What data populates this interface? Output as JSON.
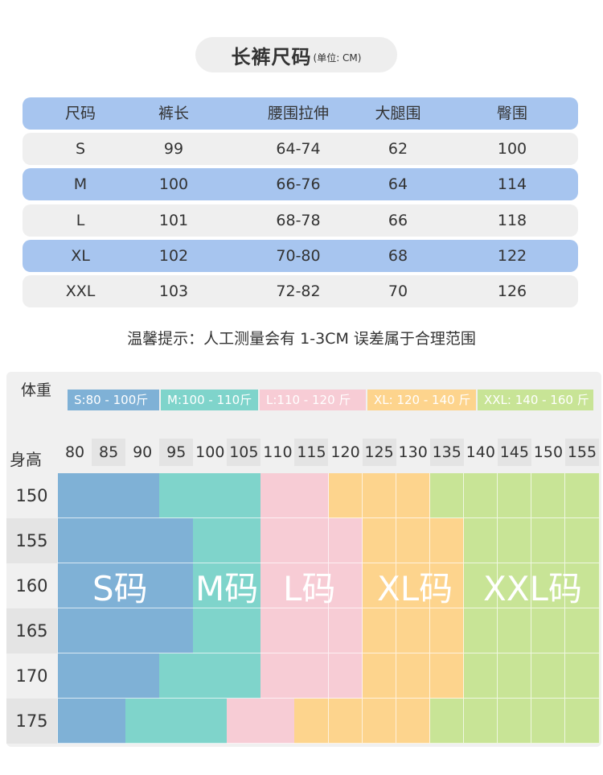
{
  "title": {
    "main": "长裤尺码",
    "unit": "(单位: CM)"
  },
  "table": {
    "headers": [
      "尺码",
      "裤长",
      "腰围拉伸",
      "大腿围",
      "臀围"
    ],
    "rows": [
      [
        "S",
        "99",
        "64-74",
        "62",
        "100"
      ],
      [
        "M",
        "100",
        "66-76",
        "64",
        "114"
      ],
      [
        "L",
        "101",
        "68-78",
        "66",
        "118"
      ],
      [
        "XL",
        "102",
        "70-80",
        "68",
        "122"
      ],
      [
        "XXL",
        "103",
        "72-82",
        "70",
        "126"
      ]
    ]
  },
  "tip": "温馨提示：人工测量会有 1-3CM 误差属于合理范围",
  "grid": {
    "weight_label": "体重",
    "height_label": "身高",
    "weight_bands": [
      {
        "label": "S:80 - 100斤",
        "color": "#7fb1d6"
      },
      {
        "label": "M:100 - 110斤",
        "color": "#7fd4cb"
      },
      {
        "label": "L:110 - 120 斤",
        "color": "#f7ccd5"
      },
      {
        "label": "XL: 120 - 140 斤",
        "color": "#fdd48d"
      },
      {
        "label": "XXL: 140 - 160 斤",
        "color": "#c8e496"
      }
    ],
    "weights": [
      "80",
      "85",
      "90",
      "95",
      "100",
      "105",
      "110",
      "115",
      "120",
      "125",
      "130",
      "135",
      "140",
      "145",
      "150",
      "155"
    ],
    "heights": [
      "150",
      "155",
      "160",
      "165",
      "170",
      "175"
    ],
    "size_labels": [
      "S码",
      "M码",
      "L码",
      "XL码",
      "XXL码"
    ],
    "colors": [
      "#7fb1d6",
      "#7fd4cb",
      "#f7ccd5",
      "#fdd48d",
      "#c8e496"
    ],
    "cell_sizes": [
      [
        0,
        0,
        0,
        1,
        1,
        1,
        2,
        2,
        3,
        3,
        3,
        4,
        4,
        4,
        4,
        4
      ],
      [
        0,
        0,
        0,
        0,
        1,
        1,
        2,
        2,
        2,
        3,
        3,
        3,
        4,
        4,
        4,
        4
      ],
      [
        0,
        0,
        0,
        0,
        1,
        1,
        2,
        2,
        2,
        3,
        3,
        3,
        4,
        4,
        4,
        4
      ],
      [
        0,
        0,
        0,
        0,
        1,
        1,
        2,
        2,
        2,
        3,
        3,
        3,
        4,
        4,
        4,
        4
      ],
      [
        0,
        0,
        0,
        1,
        1,
        1,
        2,
        2,
        2,
        3,
        3,
        3,
        4,
        4,
        4,
        4
      ],
      [
        0,
        0,
        1,
        1,
        1,
        2,
        2,
        3,
        3,
        3,
        3,
        4,
        4,
        4,
        4,
        4
      ]
    ]
  }
}
